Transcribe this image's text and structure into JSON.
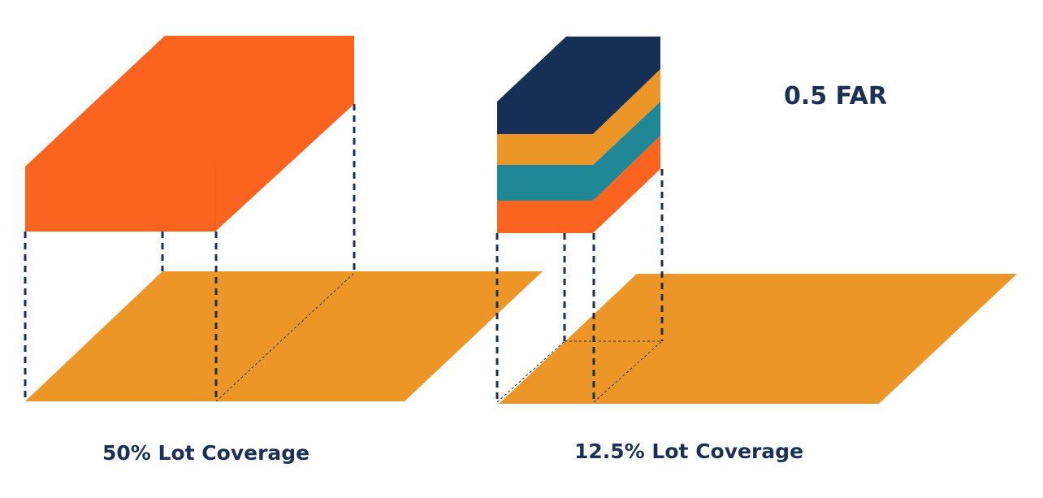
{
  "far_label": "0.5 FAR",
  "left": {
    "caption": "50% Lot Coverage"
  },
  "right": {
    "caption": "12.5% Lot Coverage"
  }
}
